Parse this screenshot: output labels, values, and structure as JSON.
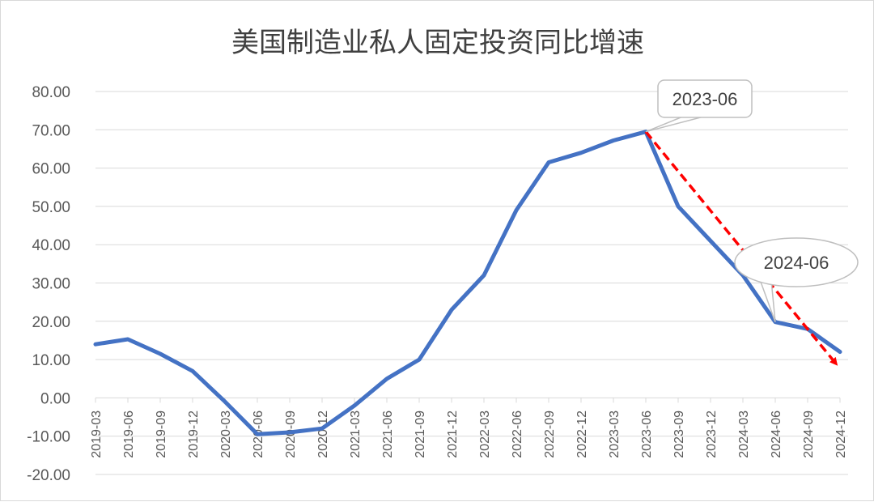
{
  "chart_data": {
    "type": "line",
    "title": "美国制造业私人固定投资同比增速",
    "xlabel": "",
    "ylabel": "",
    "ylim": [
      -20,
      80
    ],
    "yticks": [
      "80.00",
      "70.00",
      "60.00",
      "50.00",
      "40.00",
      "30.00",
      "20.00",
      "10.00",
      "0.00",
      "-10.00",
      "-20.00"
    ],
    "categories": [
      "2019-03",
      "2019-06",
      "2019-09",
      "2019-12",
      "2020-03",
      "2020-06",
      "2020-09",
      "2020-12",
      "2021-03",
      "2021-06",
      "2021-09",
      "2021-12",
      "2022-03",
      "2022-06",
      "2022-09",
      "2022-12",
      "2023-03",
      "2023-06",
      "2023-09",
      "2023-12",
      "2024-03",
      "2024-06",
      "2024-09",
      "2024-12"
    ],
    "series": [
      {
        "color": "#4472c4",
        "values": [
          14,
          15.3,
          11.5,
          7,
          -1,
          -9.5,
          -9,
          -8,
          -2,
          5,
          10,
          23,
          32,
          49,
          61.5,
          64,
          67.2,
          69.5,
          50,
          41,
          32,
          19.8,
          18,
          12
        ]
      }
    ],
    "callouts": [
      {
        "label": "2023-06",
        "category": "2023-06"
      },
      {
        "label": "2024-06",
        "category": "2024-06"
      }
    ],
    "trend_arrow": {
      "from": [
        "2023-06",
        69.5
      ],
      "to": [
        "2024-12",
        7.5
      ],
      "color": "#ff0000",
      "style": "dashed"
    },
    "grid": true,
    "legend": "none"
  }
}
